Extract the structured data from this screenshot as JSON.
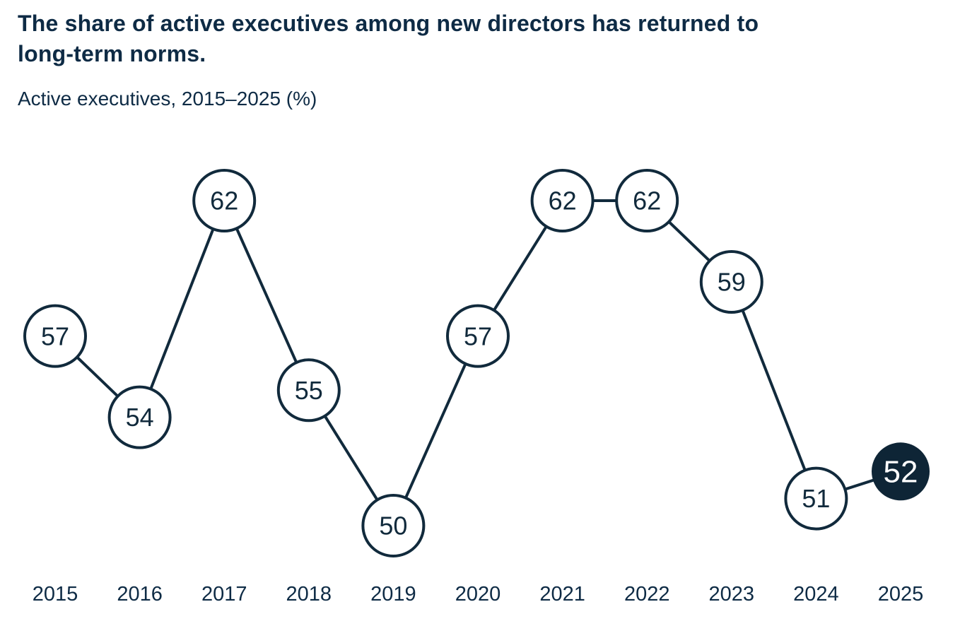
{
  "header": {
    "title": "The share of active executives among new directors has returned to long-term norms.",
    "title_lines": [
      "The share of active executives among new directors has returned to",
      "long-term norms."
    ],
    "subtitle": "Active executives, 2015–2025 (%)"
  },
  "chart_data": {
    "type": "line",
    "title": "The share of active executives among new directors has returned to long-term norms.",
    "subtitle": "Active executives, 2015–2025 (%)",
    "unit": "%",
    "x": [
      "2015",
      "2016",
      "2017",
      "2018",
      "2019",
      "2020",
      "2021",
      "2022",
      "2023",
      "2024",
      "2025"
    ],
    "values": [
      57,
      54,
      62,
      55,
      50,
      57,
      62,
      62,
      59,
      51,
      52
    ],
    "highlight": {
      "index": 10,
      "year": "2025",
      "value": 52
    },
    "marker": "labeled-circle",
    "legend": "none",
    "gridlines": false,
    "y_axis_shown": false,
    "ylim": [
      48,
      64
    ],
    "colors": {
      "line": "#112a3c",
      "marker_fill": "#ffffff",
      "marker_stroke": "#112a3c",
      "marker_text": "#112a3c",
      "highlight_fill": "#0e2536",
      "highlight_text": "#ffffff",
      "axis_text": "#0e2b45"
    }
  }
}
